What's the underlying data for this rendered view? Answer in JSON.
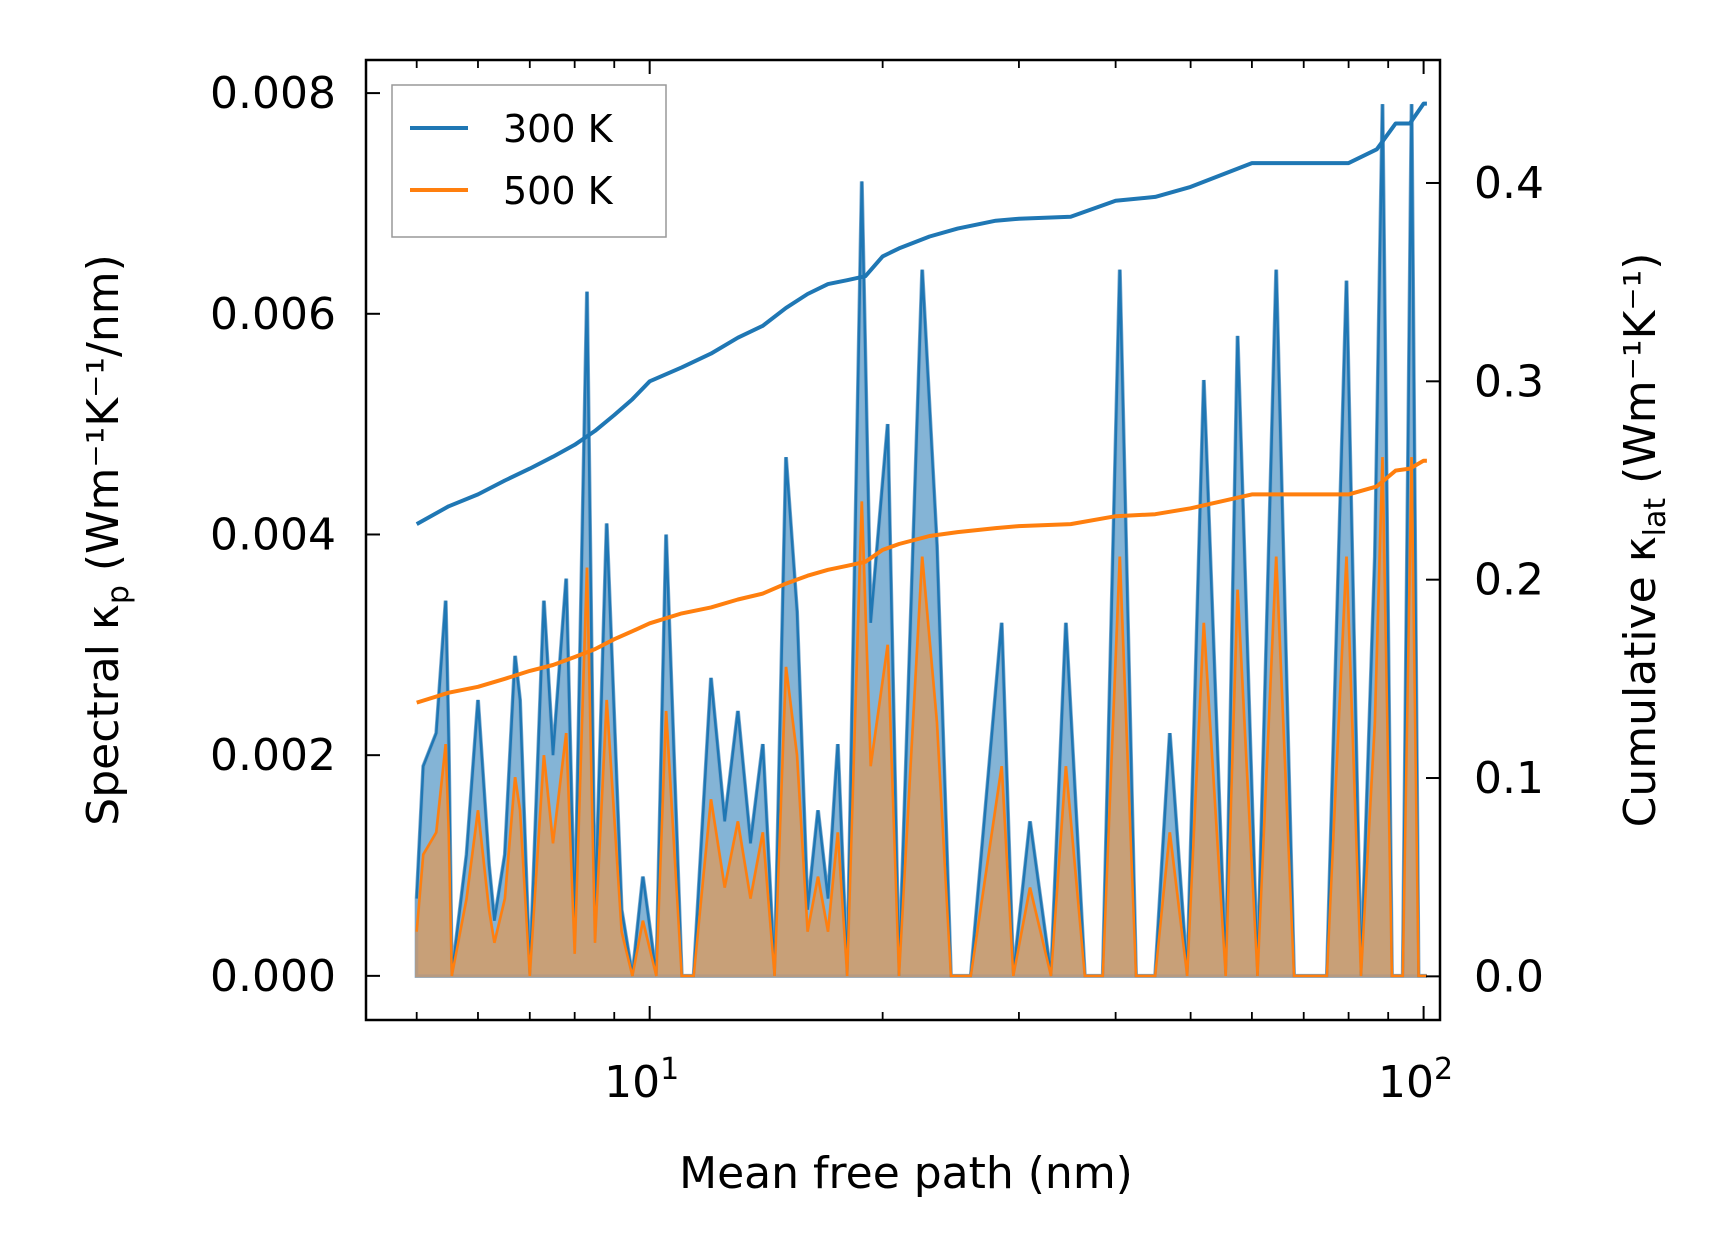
{
  "chart_data": {
    "type": "line",
    "x_scale": "log",
    "xlabel": "Mean free path (nm)",
    "ylabel_left": {
      "main": "Spectral κ",
      "sub": "p",
      "unit": "(Wm⁻¹K⁻¹/nm)"
    },
    "ylabel_right": {
      "main": "Cumulative κ",
      "sub": "lat",
      "unit": "(Wm⁻¹K⁻¹)"
    },
    "xlim": [
      4.3,
      105
    ],
    "ylim_left": [
      -0.0004,
      0.0083
    ],
    "ylim_right": [
      -0.022,
      0.462
    ],
    "x_ticks": [
      10,
      100
    ],
    "x_tick_labels": [
      {
        "base": "10",
        "exp": "1"
      },
      {
        "base": "10",
        "exp": "2"
      }
    ],
    "y_ticks_left": [
      0,
      0.002,
      0.004,
      0.006,
      0.008
    ],
    "y_tick_labels_left": [
      "0.000",
      "0.002",
      "0.004",
      "0.006",
      "0.008"
    ],
    "y_ticks_right": [
      0,
      0.1,
      0.2,
      0.3,
      0.4
    ],
    "y_tick_labels_right": [
      "0.0",
      "0.1",
      "0.2",
      "0.3",
      "0.4"
    ],
    "legend": {
      "position": "top-left",
      "entries": [
        "300 K",
        "500 K"
      ]
    },
    "colors": {
      "300 K": "#1f77b4",
      "500 K": "#ff7f0e",
      "fill_500": "#c8a078"
    },
    "spectral_x": [
      5.0,
      5.1,
      5.3,
      5.45,
      5.5,
      5.55,
      5.8,
      6.0,
      6.2,
      6.3,
      6.5,
      6.7,
      6.8,
      7.0,
      7.3,
      7.5,
      7.8,
      8.0,
      8.3,
      8.5,
      8.8,
      9.2,
      9.5,
      9.8,
      10.2,
      10.5,
      11.0,
      11.4,
      12.0,
      12.5,
      13.0,
      13.5,
      14.0,
      14.5,
      15.0,
      15.5,
      16.0,
      16.5,
      17.0,
      17.5,
      18.0,
      18.8,
      19.3,
      20.3,
      21.0,
      22.5,
      23.5,
      24.5,
      26.0,
      28.5,
      29.5,
      31.0,
      33.0,
      34.5,
      36.5,
      38.5,
      40.5,
      42.5,
      45.0,
      47.0,
      49.5,
      52.0,
      55.5,
      57.5,
      61.0,
      64.5,
      68.0,
      75.0,
      79.5,
      83.0,
      86.5,
      88.5,
      91.0,
      94.0,
      96.5,
      98.5,
      101.0
    ],
    "series_spectral": [
      {
        "name": "300 K",
        "values": [
          0.0007,
          0.0019,
          0.0022,
          0.0034,
          0.0021,
          0.0,
          0.0011,
          0.0025,
          0.001,
          0.0005,
          0.0011,
          0.0029,
          0.0025,
          0.0,
          0.0034,
          0.002,
          0.0036,
          0.0004,
          0.0062,
          0.0005,
          0.0041,
          0.0006,
          0.0,
          0.0009,
          0.0,
          0.004,
          0.0,
          0.0,
          0.0027,
          0.0014,
          0.0024,
          0.0012,
          0.0021,
          0.0,
          0.0047,
          0.0033,
          0.0006,
          0.0015,
          0.0007,
          0.0021,
          0.0,
          0.0072,
          0.0032,
          0.005,
          0.0,
          0.0064,
          0.0039,
          0.0,
          0.0,
          0.0032,
          0.0,
          0.0014,
          0.0,
          0.0032,
          0.0,
          0.0,
          0.0064,
          0.0,
          0.0,
          0.0022,
          0.0,
          0.0054,
          0.0,
          0.0058,
          0.0,
          0.0064,
          0.0,
          0.0,
          0.0063,
          0.0,
          0.0038,
          0.0079,
          0.0,
          0.0,
          0.0079,
          0.0,
          0.0
        ]
      },
      {
        "name": "500 K",
        "values": [
          0.0004,
          0.0011,
          0.0013,
          0.0021,
          0.0013,
          0.0,
          0.0007,
          0.0015,
          0.0006,
          0.0003,
          0.0007,
          0.0018,
          0.0015,
          0.0,
          0.002,
          0.0012,
          0.0022,
          0.0002,
          0.0037,
          0.0003,
          0.0025,
          0.0004,
          0.0,
          0.0005,
          0.0,
          0.0024,
          0.0,
          0.0,
          0.0016,
          0.0008,
          0.0014,
          0.0007,
          0.0013,
          0.0,
          0.0028,
          0.002,
          0.0004,
          0.0009,
          0.0004,
          0.0013,
          0.0,
          0.0043,
          0.0019,
          0.003,
          0.0,
          0.0038,
          0.0023,
          0.0,
          0.0,
          0.0019,
          0.0,
          0.0008,
          0.0,
          0.0019,
          0.0,
          0.0,
          0.0038,
          0.0,
          0.0,
          0.0013,
          0.0,
          0.0032,
          0.0,
          0.0035,
          0.0,
          0.0038,
          0.0,
          0.0,
          0.0038,
          0.0,
          0.0023,
          0.0047,
          0.0,
          0.0,
          0.0047,
          0.0,
          0.0
        ]
      }
    ],
    "series_cumulative": [
      {
        "name": "300 K",
        "x": [
          5.0,
          5.5,
          6.0,
          6.5,
          7.0,
          7.5,
          8.0,
          8.5,
          9.0,
          9.5,
          10.0,
          11.0,
          12.0,
          13.0,
          14.0,
          15.0,
          16.0,
          17.0,
          18.0,
          19.0,
          20.0,
          21.0,
          23.0,
          25.0,
          28.0,
          30.0,
          35.0,
          40.0,
          45.0,
          50.0,
          60.0,
          70.0,
          80.0,
          87.0,
          92.0,
          96.0,
          100.0,
          101.0
        ],
        "values": [
          0.228,
          0.237,
          0.243,
          0.25,
          0.256,
          0.262,
          0.268,
          0.275,
          0.283,
          0.291,
          0.3,
          0.307,
          0.314,
          0.322,
          0.328,
          0.337,
          0.344,
          0.349,
          0.351,
          0.353,
          0.363,
          0.367,
          0.373,
          0.377,
          0.381,
          0.382,
          0.383,
          0.391,
          0.393,
          0.398,
          0.41,
          0.41,
          0.41,
          0.417,
          0.43,
          0.43,
          0.44,
          0.44
        ]
      },
      {
        "name": "500 K",
        "x": [
          5.0,
          5.5,
          6.0,
          6.5,
          7.0,
          7.5,
          8.0,
          8.5,
          9.0,
          9.5,
          10.0,
          11.0,
          12.0,
          13.0,
          14.0,
          15.0,
          16.0,
          17.0,
          18.0,
          19.0,
          20.0,
          21.0,
          23.0,
          25.0,
          28.0,
          30.0,
          35.0,
          40.0,
          45.0,
          50.0,
          60.0,
          70.0,
          80.0,
          87.0,
          92.0,
          96.0,
          100.0,
          101.0
        ],
        "values": [
          0.138,
          0.143,
          0.146,
          0.15,
          0.154,
          0.157,
          0.161,
          0.165,
          0.17,
          0.174,
          0.178,
          0.183,
          0.186,
          0.19,
          0.193,
          0.198,
          0.202,
          0.205,
          0.207,
          0.209,
          0.215,
          0.218,
          0.222,
          0.224,
          0.226,
          0.227,
          0.228,
          0.232,
          0.233,
          0.236,
          0.243,
          0.243,
          0.243,
          0.247,
          0.255,
          0.256,
          0.26,
          0.26
        ]
      }
    ]
  }
}
